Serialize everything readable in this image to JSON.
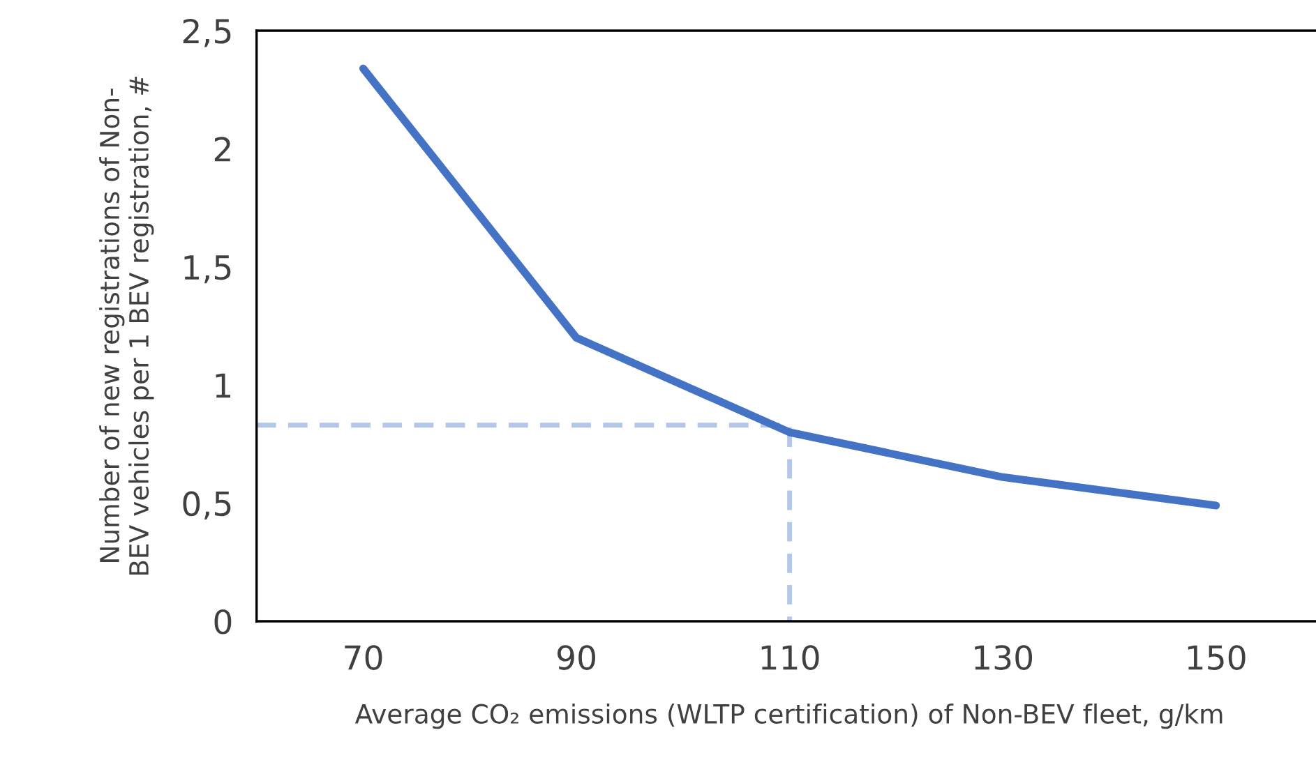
{
  "chart_data": {
    "type": "line",
    "xlabel": "Average CO₂ emissions (WLTP certification) of Non-BEV fleet, g/km",
    "ylabel": "Number of new registrations of Non-\nBEV vehicles per 1 BEV registration, #",
    "xlim": [
      60,
      160
    ],
    "xticks": [
      70,
      90,
      110,
      130,
      150
    ],
    "ylim": [
      0,
      2.5
    ],
    "yticks": [
      0,
      {
        "value": 0.5,
        "label": "0,5"
      },
      1,
      {
        "value": 1.5,
        "label": "1,5"
      },
      2,
      {
        "value": 2.5,
        "label": "2,5"
      }
    ],
    "grid": false,
    "legend": false,
    "marker": "none",
    "series": [
      {
        "color": "#4472c4",
        "x": [
          70,
          90,
          110,
          130,
          150
        ],
        "values": [
          2.34,
          1.2,
          0.8,
          0.61,
          0.49
        ],
        "line_style": "solid"
      },
      {
        "color": "#b4c7e7",
        "x": [
          60,
          110,
          110
        ],
        "values": [
          0.83,
          0.83,
          0
        ],
        "line_style": "dashed"
      }
    ]
  }
}
